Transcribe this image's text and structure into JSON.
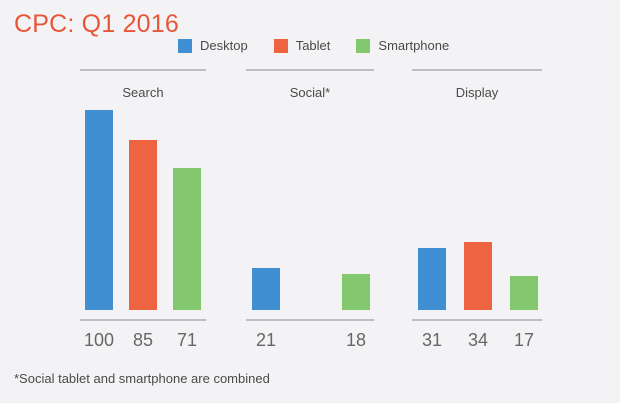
{
  "title": "CPC: Q1 2016",
  "footnote": "*Social tablet and smartphone are combined",
  "colors": {
    "title": "#e8563a",
    "desktop": "#3f8fd2",
    "tablet": "#ee6440",
    "smartphone": "#83c86e",
    "rule": "#8a8a8a",
    "text": "#4a4a4a",
    "value_text": "#666666"
  },
  "legend": [
    {
      "label": "Desktop",
      "color": "#3f8fd2"
    },
    {
      "label": "Tablet",
      "color": "#ee6440"
    },
    {
      "label": "Smartphone",
      "color": "#83c86e"
    }
  ],
  "chart_data": {
    "type": "bar",
    "title": "CPC: Q1 2016",
    "categories": [
      "Search",
      "Social*",
      "Display"
    ],
    "series": [
      {
        "name": "Desktop",
        "values": [
          100,
          21,
          31
        ]
      },
      {
        "name": "Tablet",
        "values": [
          85,
          null,
          34
        ]
      },
      {
        "name": "Smartphone",
        "values": [
          71,
          18,
          17
        ]
      }
    ],
    "ylim": [
      0,
      100
    ],
    "grid": false,
    "legend_position": "top",
    "data_labels": "below-bars"
  }
}
